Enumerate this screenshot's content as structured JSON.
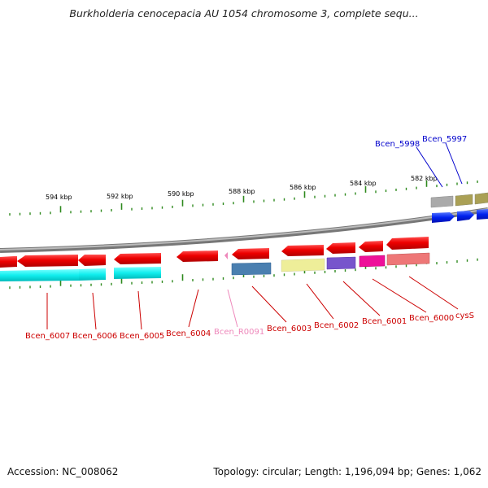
{
  "title": "Burkholderia cenocepacia AU 1054 chromosome 3, complete sequ...",
  "footer": {
    "accession": "Accession: NC_008062",
    "summary": "Topology: circular; Length: 1,196,094 bp; Genes: 1,062"
  },
  "colors": {
    "backbone": "#8a8a8a",
    "tick": "#2f8a1e",
    "label_red": "#cc0000",
    "label_pink": "#ee88bb",
    "label_blue": "#0000cc"
  },
  "scale_ticks": [
    "594 kbp",
    "592 kbp",
    "590 kbp",
    "588 kbp",
    "586 kbp",
    "584 kbp",
    "582 kbp"
  ],
  "gene_labels_bottom": [
    {
      "text": "Bcen_6007",
      "color": "red"
    },
    {
      "text": "Bcen_6006",
      "color": "red"
    },
    {
      "text": "Bcen_6005",
      "color": "red"
    },
    {
      "text": "Bcen_6004",
      "color": "red"
    },
    {
      "text": "Bcen_R0091",
      "color": "pink"
    },
    {
      "text": "Bcen_6003",
      "color": "red"
    },
    {
      "text": "Bcen_6002",
      "color": "red"
    },
    {
      "text": "Bcen_6001",
      "color": "red"
    },
    {
      "text": "Bcen_6000",
      "color": "red"
    },
    {
      "text": "cysS",
      "color": "red"
    }
  ],
  "gene_labels_top": [
    {
      "text": "Bcen_5998",
      "color": "blue"
    },
    {
      "text": "Bcen_5997",
      "color": "blue"
    }
  ]
}
